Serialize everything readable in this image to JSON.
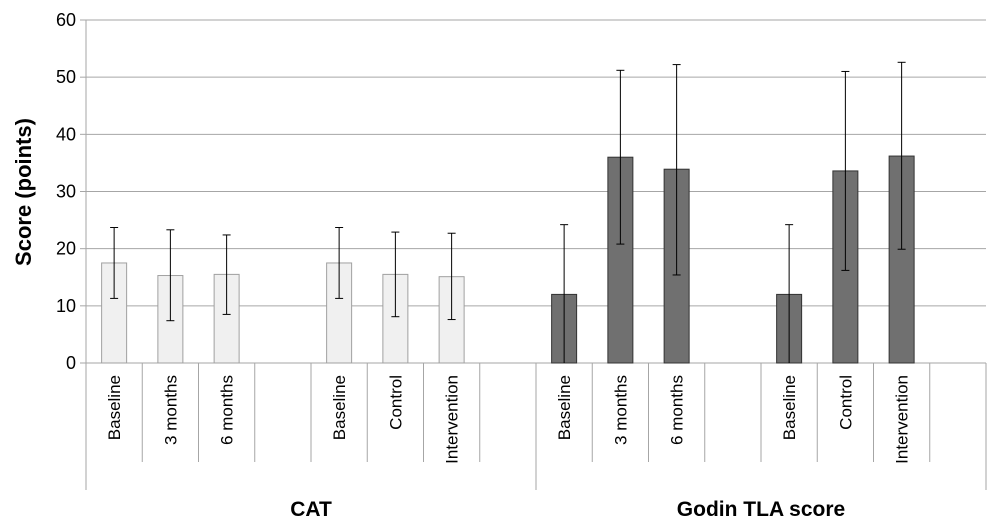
{
  "chart_data": {
    "type": "bar",
    "ylabel": "Score (points)",
    "ylim": [
      0,
      60
    ],
    "yticks": [
      0,
      10,
      20,
      30,
      40,
      50,
      60
    ],
    "grid": true,
    "bar_colors": {
      "CAT": "#f0f0f0",
      "Godin TLA score": "#707070"
    },
    "groups": [
      {
        "label": "CAT",
        "subgroups": [
          {
            "bars": [
              {
                "category": "Baseline",
                "value": 17.5,
                "error_low": 11.3,
                "error_high": 23.7
              },
              {
                "category": "3 months",
                "value": 15.3,
                "error_low": 7.4,
                "error_high": 23.3
              },
              {
                "category": "6 months",
                "value": 15.5,
                "error_low": 8.5,
                "error_high": 22.4
              }
            ]
          },
          {
            "bars": [
              {
                "category": "Baseline",
                "value": 17.5,
                "error_low": 11.3,
                "error_high": 23.7
              },
              {
                "category": "Control",
                "value": 15.5,
                "error_low": 8.1,
                "error_high": 22.9
              },
              {
                "category": "Intervention",
                "value": 15.1,
                "error_low": 7.6,
                "error_high": 22.7
              }
            ]
          }
        ]
      },
      {
        "label": "Godin TLA score",
        "subgroups": [
          {
            "bars": [
              {
                "category": "Baseline",
                "value": 12.0,
                "error_low": 0,
                "error_high": 24.2
              },
              {
                "category": "3 months",
                "value": 36.0,
                "error_low": 20.8,
                "error_high": 51.2
              },
              {
                "category": "6 months",
                "value": 33.9,
                "error_low": 15.4,
                "error_high": 52.2
              }
            ]
          },
          {
            "bars": [
              {
                "category": "Baseline",
                "value": 12.0,
                "error_low": 0,
                "error_high": 24.2
              },
              {
                "category": "Control",
                "value": 33.6,
                "error_low": 16.2,
                "error_high": 51.0
              },
              {
                "category": "Intervention",
                "value": 36.2,
                "error_low": 19.9,
                "error_high": 52.6
              }
            ]
          }
        ]
      }
    ]
  }
}
